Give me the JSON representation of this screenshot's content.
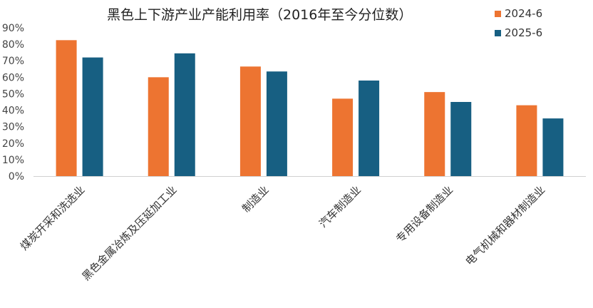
{
  "chart_data": {
    "type": "bar",
    "title": "黑色上下游产业产能利用率（2016年至今分位数）",
    "categories": [
      "煤炭开采和洗选业",
      "黑色金属冶炼及压延加工业",
      "制造业",
      "汽车制造业",
      "专用设备制造业",
      "电气机械和器材制造业"
    ],
    "series": [
      {
        "name": "2024-6",
        "color": "#ED7431",
        "values": [
          82.5,
          60,
          66.5,
          47,
          51,
          43
        ]
      },
      {
        "name": "2025-6",
        "color": "#175F82",
        "values": [
          72,
          74.5,
          63.5,
          58,
          45,
          35
        ]
      }
    ],
    "ylim": [
      0,
      90
    ],
    "y_ticks": [
      "0%",
      "10%",
      "20%",
      "30%",
      "40%",
      "50%",
      "60%",
      "70%",
      "80%",
      "90%"
    ],
    "grid": false,
    "legend_position": "top-right",
    "xlabel": "",
    "ylabel": ""
  }
}
